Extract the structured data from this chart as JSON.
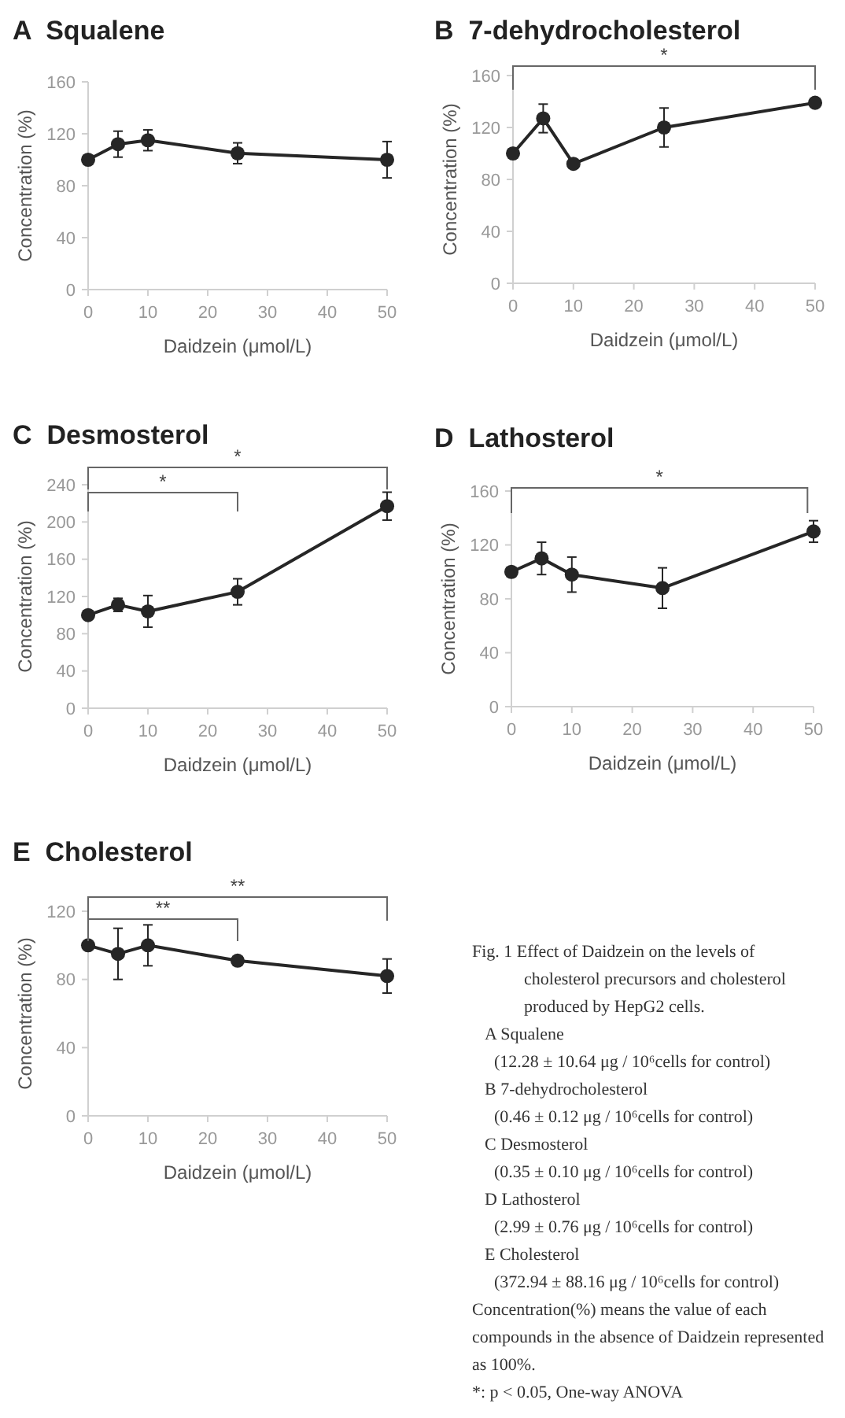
{
  "chart_data": [
    {
      "type": "line",
      "title": "A  Squalene",
      "xlabel": "Daidzein (μmol/L)",
      "ylabel": "Concentration (%)",
      "x": [
        0,
        5,
        10,
        25,
        50
      ],
      "series": [
        {
          "color": "#262626",
          "values": [
            100,
            112,
            115,
            105,
            100
          ],
          "errors": [
            null,
            10,
            8,
            8,
            14
          ]
        }
      ],
      "xlim": [
        0,
        50
      ],
      "xticks": [
        0,
        10,
        20,
        30,
        40,
        50
      ],
      "ylim": [
        0,
        160
      ],
      "yticks": [
        0,
        40,
        80,
        120,
        160
      ],
      "marker": "circle"
    },
    {
      "type": "line",
      "title": "B  7-dehydrocholesterol",
      "xlabel": "Daidzein (μmol/L)",
      "ylabel": "Concentration (%)",
      "x": [
        0,
        5,
        10,
        25,
        50
      ],
      "series": [
        {
          "color": "#262626",
          "values": [
            100,
            127,
            92,
            120,
            139
          ],
          "errors": [
            null,
            11,
            null,
            15,
            null
          ]
        }
      ],
      "xlim": [
        0,
        50
      ],
      "xticks": [
        0,
        10,
        20,
        30,
        40,
        50
      ],
      "ylim": [
        0,
        160
      ],
      "yticks": [
        0,
        40,
        80,
        120,
        160
      ],
      "marker": "circle",
      "annotations": [
        "*"
      ]
    },
    {
      "type": "line",
      "title": "C  Desmosterol",
      "xlabel": "Daidzein (μmol/L)",
      "ylabel": "Concentration (%)",
      "x": [
        0,
        5,
        10,
        25,
        50
      ],
      "series": [
        {
          "color": "#262626",
          "values": [
            100,
            111,
            104,
            125,
            217
          ],
          "errors": [
            null,
            7,
            17,
            14,
            15
          ]
        }
      ],
      "xlim": [
        0,
        50
      ],
      "xticks": [
        0,
        10,
        20,
        30,
        40,
        50
      ],
      "ylim": [
        0,
        240
      ],
      "yticks": [
        0,
        40,
        80,
        120,
        160,
        200,
        240
      ],
      "marker": "circle",
      "annotations": [
        "*",
        "*"
      ]
    },
    {
      "type": "line",
      "title": "D  Lathosterol",
      "xlabel": "Daidzein (μmol/L)",
      "ylabel": "Concentration (%)",
      "x": [
        0,
        5,
        10,
        25,
        50
      ],
      "series": [
        {
          "color": "#262626",
          "values": [
            100,
            110,
            98,
            88,
            130
          ],
          "errors": [
            null,
            12,
            13,
            15,
            8
          ]
        }
      ],
      "xlim": [
        0,
        50
      ],
      "xticks": [
        0,
        10,
        20,
        30,
        40,
        50
      ],
      "ylim": [
        0,
        160
      ],
      "yticks": [
        0,
        40,
        80,
        120,
        160
      ],
      "marker": "circle",
      "annotations": [
        "*"
      ]
    },
    {
      "type": "line",
      "title": "E  Cholesterol",
      "xlabel": "Daidzein (μmol/L)",
      "ylabel": "Concentration (%)",
      "x": [
        0,
        5,
        10,
        25,
        50
      ],
      "series": [
        {
          "color": "#262626",
          "values": [
            100,
            95,
            100,
            91,
            82
          ],
          "errors": [
            null,
            15,
            12,
            null,
            10
          ]
        }
      ],
      "xlim": [
        0,
        50
      ],
      "xticks": [
        0,
        10,
        20,
        30,
        40,
        50
      ],
      "ylim": [
        0,
        120
      ],
      "yticks": [
        0,
        40,
        80,
        120
      ],
      "marker": "circle",
      "annotations": [
        "**",
        "**"
      ]
    },
    {
      "type": "other",
      "annotations": [
        "Fig. 1  Effect of Daidzein on the levels of cholesterol precursors and cholesterol produced by HepG2 cells.",
        "A  Squalene",
        "(12.28 ± 10.64 μg / 10⁶cells for control)",
        "B  7-dehydrocholesterol",
        "(0.46 ± 0.12 μg / 10⁶cells for control)",
        "C  Desmosterol",
        "(0.35 ± 0.10 μg / 10⁶cells for control)",
        "D  Lathosterol",
        "(2.99 ± 0.76 μg / 10⁶cells for control)",
        "E  Cholesterol",
        "(372.94 ± 88.16 μg / 10⁶cells for control)",
        "Concentration(%) means the value of each compounds in the absence of Daidzein represented as 100%.",
        "*: p < 0.05, One-way ANOVA"
      ]
    }
  ]
}
